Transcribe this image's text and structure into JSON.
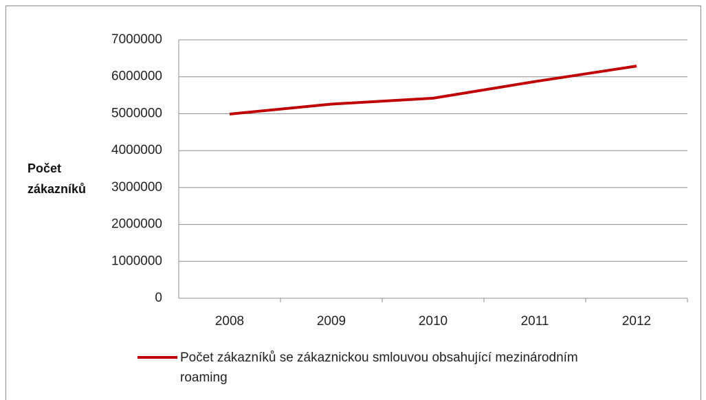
{
  "chart_data": {
    "type": "line",
    "y_label": "Počet zákazníků",
    "categories": [
      "2008",
      "2009",
      "2010",
      "2011",
      "2012"
    ],
    "series": [
      {
        "name": "Počet zákazníků se zákaznickou smlouvou obsahující mezinárodním roaming",
        "color": "#c00000",
        "values": [
          4990000,
          5260000,
          5420000,
          5870000,
          6290000
        ]
      }
    ],
    "ylim": [
      0,
      7000000
    ],
    "yticks": [
      0,
      1000000,
      2000000,
      3000000,
      4000000,
      5000000,
      6000000,
      7000000
    ],
    "grid": true,
    "legend": "bottom"
  }
}
